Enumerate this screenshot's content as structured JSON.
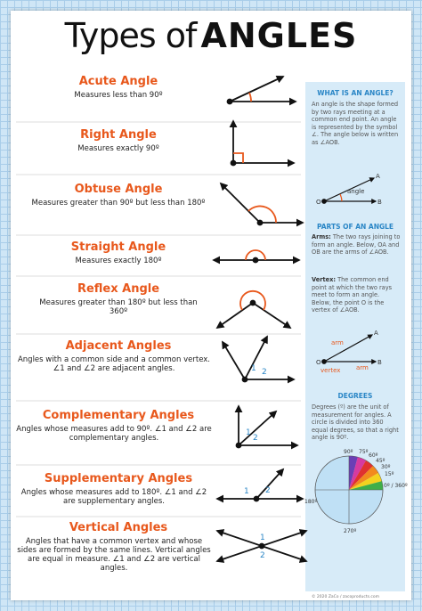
{
  "header": {
    "title_prefix": "Types of",
    "title_main": "ANGLES"
  },
  "angle_types": [
    {
      "name": "Acute Angle",
      "description": "Measures less than 90º"
    },
    {
      "name": "Right Angle",
      "description": "Measures exactly 90º"
    },
    {
      "name": "Obtuse Angle",
      "description": "Measures greater than 90º but less than 180º"
    },
    {
      "name": "Straight Angle",
      "description": "Measures exactly 180º"
    },
    {
      "name": "Reflex Angle",
      "description": "Measures greater than 180º but less than 360º"
    },
    {
      "name": "Adjacent Angles",
      "description": "Angles with a common side and a common vertex. ∠1 and ∠2 are adjacent angles.",
      "labels": [
        "1",
        "2"
      ]
    },
    {
      "name": "Complementary Angles",
      "description": "Angles whose measures add to 90º. ∠1 and ∠2 are complementary angles.",
      "labels": [
        "1",
        "2"
      ]
    },
    {
      "name": "Supplementary Angles",
      "description": "Angles whose measures add to 180º. ∠1 and ∠2 are supplementary angles.",
      "labels": [
        "1",
        "2"
      ]
    },
    {
      "name": "Vertical Angles",
      "description": "Angles that have a common vertex and whose sides are formed by the same lines. Vertical angles are equal in measure. ∠1 and ∠2 are vertical angles.",
      "labels": [
        "1",
        "2"
      ]
    }
  ],
  "sidebar": {
    "what": {
      "heading": "WHAT IS AN ANGLE?",
      "text": "An angle is the shape formed by two rays meeting at a common end point. An angle is represented by the symbol ∠. The angle below is written as ∠AOB.",
      "labels": [
        "A",
        "angle",
        "O",
        "B"
      ]
    },
    "parts": {
      "heading": "PARTS OF AN ANGLE",
      "arms_term": "Arms:",
      "arms_text": "The two rays joining to form an angle. Below, OA and OB are the arms of ∠AOB.",
      "vertex_term": "Vertex:",
      "vertex_text": "The common end point at which the two rays meet to form an angle. Below, the point O is the vertex of ∠AOB.",
      "labels": [
        "A",
        "arm",
        "O",
        "vertex",
        "arm",
        "B"
      ]
    },
    "degrees": {
      "heading": "DEGREES",
      "text": "Degrees (º) are the unit of measurement for angles. A circle is divided into 360 equal degrees, so that a right angle is 90º.",
      "marks": [
        "90º",
        "75º",
        "60º",
        "45º",
        "30º",
        "15º",
        "0º / 360º",
        "180º",
        "270º"
      ]
    }
  },
  "footer": "© 2020 ZaCo / zacoproducts.com"
}
